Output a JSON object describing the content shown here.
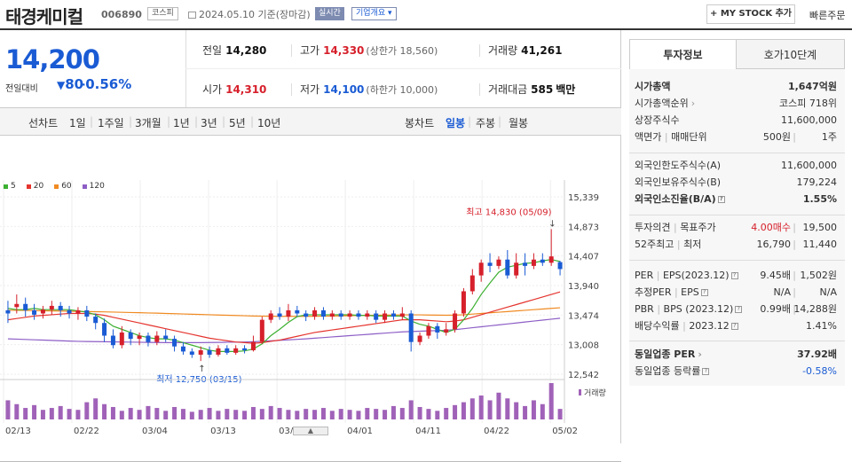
{
  "header": {
    "title": "태경케미컬",
    "code": "006890",
    "market_badge": "코스피",
    "date_icon": "calendar-icon",
    "date_text": "2024.05.10 기준(장마감)",
    "live_badge": "실시간",
    "company_badge": "기업개요",
    "company_badge_arrow": "▾",
    "mystock_label": "+ MY STOCK 추가",
    "quick_order": "빠른주문"
  },
  "quote": {
    "price": "14,200",
    "compare_label": "전일대비",
    "change_arrow": "▼",
    "change": "80",
    "change_pct": "-0.56%",
    "prev_label": "전일",
    "prev": "14,280",
    "high_label": "고가",
    "high": "14,330",
    "upper_limit": "(상한가 18,560)",
    "volume_label": "거래량",
    "volume": "41,261",
    "open_label": "시가",
    "open": "14,310",
    "low_label": "저가",
    "low": "14,100",
    "lower_limit": "(하한가 10,000)",
    "amount_label": "거래대금",
    "amount": "585",
    "amount_unit": "백만"
  },
  "periods": {
    "line_label": "선차트",
    "items": [
      "1일",
      "1주일",
      "3개월",
      "1년",
      "3년",
      "5년",
      "10년"
    ],
    "candle_label": "봉차트",
    "candle_items": [
      "일봉",
      "주봉",
      "월봉"
    ],
    "candle_selected": "일봉"
  },
  "chart_data": {
    "type": "candlestick",
    "legend": [
      {
        "name": "5",
        "color": "#3cb031"
      },
      {
        "name": "20",
        "color": "#e5342e"
      },
      {
        "name": "60",
        "color": "#f08a22"
      },
      {
        "name": "120",
        "color": "#8d5ec6"
      }
    ],
    "yticks": [
      "15,339",
      "14,873",
      "14,407",
      "13,940",
      "13,474",
      "13,008",
      "12,542"
    ],
    "ylim": [
      12542,
      15339
    ],
    "xticks": [
      "02/13",
      "02/22",
      "03/04",
      "03/13",
      "03/22",
      "04/01",
      "04/11",
      "04/22",
      "05/02"
    ],
    "annot_high": "최고 14,830 (05/09)",
    "annot_low": "최저 12,750 (03/15)",
    "volume_label": "거래량",
    "up_color": "#d6202b",
    "down_color": "#1a5bd4",
    "candles": [
      [
        13550,
        13500,
        13700,
        13350
      ],
      [
        13600,
        13650,
        13800,
        13500
      ],
      [
        13650,
        13550,
        13750,
        13450
      ],
      [
        13550,
        13480,
        13650,
        13400
      ],
      [
        13500,
        13560,
        13620,
        13420
      ],
      [
        13560,
        13620,
        13700,
        13480
      ],
      [
        13620,
        13550,
        13680,
        13450
      ],
      [
        13550,
        13500,
        13620,
        13420
      ],
      [
        13500,
        13550,
        13600,
        13400
      ],
      [
        13550,
        13450,
        13620,
        13380
      ],
      [
        13450,
        13350,
        13500,
        13250
      ],
      [
        13350,
        13150,
        13420,
        13050
      ],
      [
        13150,
        13000,
        13250,
        12950
      ],
      [
        13000,
        13200,
        13300,
        12950
      ],
      [
        13200,
        13100,
        13250,
        13000
      ],
      [
        13100,
        13150,
        13200,
        13000
      ],
      [
        13150,
        13050,
        13200,
        12980
      ],
      [
        13050,
        13150,
        13220,
        13000
      ],
      [
        13150,
        13100,
        13250,
        13050
      ],
      [
        13100,
        12980,
        13150,
        12900
      ],
      [
        12980,
        12900,
        13050,
        12850
      ],
      [
        12900,
        12850,
        12950,
        12800
      ],
      [
        12850,
        12920,
        12980,
        12750
      ],
      [
        12920,
        12850,
        12980,
        12800
      ],
      [
        12850,
        12950,
        13000,
        12820
      ],
      [
        12950,
        12880,
        13000,
        12850
      ],
      [
        12880,
        12950,
        13000,
        12850
      ],
      [
        12950,
        12920,
        13000,
        12870
      ],
      [
        12920,
        13050,
        13150,
        12900
      ],
      [
        13050,
        13400,
        13450,
        13020
      ],
      [
        13400,
        13500,
        13550,
        13350
      ],
      [
        13500,
        13450,
        13600,
        13400
      ],
      [
        13450,
        13550,
        13650,
        13380
      ],
      [
        13550,
        13500,
        13620,
        13450
      ],
      [
        13500,
        13450,
        13550,
        13380
      ],
      [
        13450,
        13550,
        13600,
        13400
      ],
      [
        13550,
        13450,
        13600,
        13400
      ],
      [
        13450,
        13500,
        13550,
        13400
      ],
      [
        13500,
        13450,
        13550,
        13400
      ],
      [
        13450,
        13500,
        13550,
        13400
      ],
      [
        13500,
        13450,
        13550,
        13400
      ],
      [
        13450,
        13500,
        13550,
        13400
      ],
      [
        13500,
        13400,
        13550,
        13350
      ],
      [
        13400,
        13500,
        13550,
        13350
      ],
      [
        13500,
        13450,
        13550,
        13400
      ],
      [
        13450,
        13500,
        13600,
        13400
      ],
      [
        13500,
        13050,
        13550,
        12900
      ],
      [
        13050,
        13150,
        13200,
        13000
      ],
      [
        13150,
        13300,
        13350,
        13100
      ],
      [
        13300,
        13200,
        13350,
        13100
      ],
      [
        13200,
        13250,
        13350,
        13150
      ],
      [
        13250,
        13500,
        13550,
        13200
      ],
      [
        13500,
        13850,
        13900,
        13450
      ],
      [
        13850,
        14100,
        14200,
        13800
      ],
      [
        14100,
        14300,
        14350,
        14000
      ],
      [
        14300,
        14250,
        14450,
        14150
      ],
      [
        14250,
        14350,
        14400,
        14200
      ],
      [
        14350,
        14100,
        14500,
        14050
      ],
      [
        14100,
        14300,
        14450,
        14050
      ],
      [
        14300,
        14250,
        14450,
        14100
      ],
      [
        14250,
        14350,
        14450,
        14200
      ],
      [
        14350,
        14300,
        14450,
        14250
      ],
      [
        14300,
        14400,
        14830,
        14250
      ],
      [
        14310,
        14200,
        14330,
        14100
      ]
    ],
    "volumes": [
      20,
      16,
      12,
      15,
      10,
      12,
      14,
      11,
      10,
      18,
      22,
      16,
      13,
      9,
      12,
      10,
      14,
      12,
      9,
      13,
      11,
      8,
      10,
      12,
      9,
      11,
      10,
      9,
      13,
      11,
      14,
      12,
      10,
      9,
      11,
      10,
      12,
      9,
      11,
      10,
      9,
      12,
      11,
      10,
      14,
      12,
      20,
      13,
      11,
      9,
      12,
      15,
      18,
      22,
      25,
      20,
      28,
      22,
      18,
      14,
      20,
      16,
      38,
      11
    ],
    "ma5": [
      13580,
      13560,
      13560,
      13580,
      13560,
      13560,
      13560,
      13560,
      13540,
      13520,
      13480,
      13400,
      13300,
      13250,
      13200,
      13150,
      13120,
      13100,
      13100,
      13080,
      13040,
      13000,
      12960,
      12920,
      12900,
      12900,
      12900,
      12910,
      12940,
      13020,
      13150,
      13250,
      13360,
      13450,
      13480,
      13480,
      13480,
      13480,
      13480,
      13480,
      13470,
      13470,
      13460,
      13460,
      13460,
      13460,
      13380,
      13330,
      13300,
      13250,
      13200,
      13250,
      13400,
      13580,
      13800,
      13980,
      14150,
      14230,
      14260,
      14290,
      14300,
      14330,
      14350,
      14320
    ],
    "ma20": [
      13400,
      13420,
      13440,
      13460,
      13470,
      13480,
      13490,
      13500,
      13500,
      13500,
      13490,
      13470,
      13440,
      13410,
      13380,
      13350,
      13320,
      13290,
      13260,
      13230,
      13200,
      13170,
      13140,
      13110,
      13090,
      13070,
      13050,
      13040,
      13030,
      13040,
      13060,
      13080,
      13110,
      13140,
      13170,
      13200,
      13220,
      13240,
      13260,
      13280,
      13300,
      13320,
      13340,
      13360,
      13380,
      13400,
      13400,
      13400,
      13390,
      13380,
      13370,
      13380,
      13400,
      13440,
      13480,
      13520,
      13560,
      13600,
      13640,
      13680,
      13720,
      13760,
      13800,
      13840
    ],
    "ma60": [
      13550,
      13550,
      13548,
      13545,
      13542,
      13540,
      13538,
      13535,
      13532,
      13530,
      13528,
      13525,
      13522,
      13518,
      13515,
      13512,
      13508,
      13505,
      13500,
      13496,
      13492,
      13488,
      13484,
      13480,
      13476,
      13472,
      13468,
      13464,
      13460,
      13458,
      13456,
      13455,
      13455,
      13455,
      13455,
      13456,
      13458,
      13460,
      13462,
      13465,
      13468,
      13470,
      13472,
      13474,
      13476,
      13478,
      13478,
      13478,
      13476,
      13474,
      13472,
      13474,
      13480,
      13490,
      13500,
      13510,
      13520,
      13530,
      13540,
      13550,
      13560,
      13570,
      13580,
      13590
    ],
    "ma120": [
      13100,
      13095,
      13090,
      13085,
      13080,
      13075,
      13070,
      13065,
      13060,
      13058,
      13056,
      13054,
      13052,
      13050,
      13048,
      13046,
      13044,
      13042,
      13040,
      13040,
      13040,
      13040,
      13040,
      13042,
      13044,
      13046,
      13048,
      13050,
      13054,
      13060,
      13068,
      13076,
      13084,
      13092,
      13100,
      13110,
      13120,
      13130,
      13140,
      13150,
      13160,
      13170,
      13180,
      13190,
      13200,
      13210,
      13215,
      13220,
      13225,
      13230,
      13235,
      13245,
      13260,
      13275,
      13290,
      13305,
      13320,
      13335,
      13350,
      13365,
      13380,
      13395,
      13410,
      13425
    ]
  },
  "invest": {
    "tab1": "투자정보",
    "tab2": "호가10단계",
    "rows": [
      {
        "l": "시가총액",
        "r": "1,647억원",
        "bold": true
      },
      {
        "l": "시가총액순위",
        "info": "›",
        "r": "코스피 718위"
      },
      {
        "l": "상장주식수",
        "r": "11,600,000"
      },
      {
        "l": "액면가",
        "l2": "매매단위",
        "r": "500원",
        "r2": "1주"
      },
      {
        "l": "외국인한도주식수(A)",
        "r": "11,600,000"
      },
      {
        "l": "외국인보유주식수(B)",
        "r": "179,224"
      },
      {
        "l": "외국인소진율(B/A)",
        "icon": "?",
        "r": "1.55%",
        "bold": true
      },
      {
        "l": "투자의견",
        "l2": "목표주가",
        "r": "4.00매수",
        "r2": "19,500"
      },
      {
        "l": "52주최고",
        "l2": "최저",
        "r": "16,790",
        "r2": "11,440"
      },
      {
        "l": "PER",
        "l2": "EPS(2023.12)",
        "icon": "?",
        "r": "9.45배",
        "r2": "1,502원"
      },
      {
        "l": "추정PER",
        "l2": "EPS",
        "icon": "?",
        "r": "N/A",
        "r2": "N/A"
      },
      {
        "l": "PBR",
        "l2": "BPS (2023.12)",
        "icon": "?",
        "r": "0.99배",
        "r2": "14,288원"
      },
      {
        "l": "배당수익률",
        "l2": "2023.12",
        "icon": "?",
        "r": "1.41%"
      },
      {
        "l": "동일업종 PER",
        "info": "›",
        "r": "37.92배",
        "bold": true
      },
      {
        "l": "동일업종 등락률",
        "icon": "?",
        "r": "-0.58%"
      }
    ]
  }
}
